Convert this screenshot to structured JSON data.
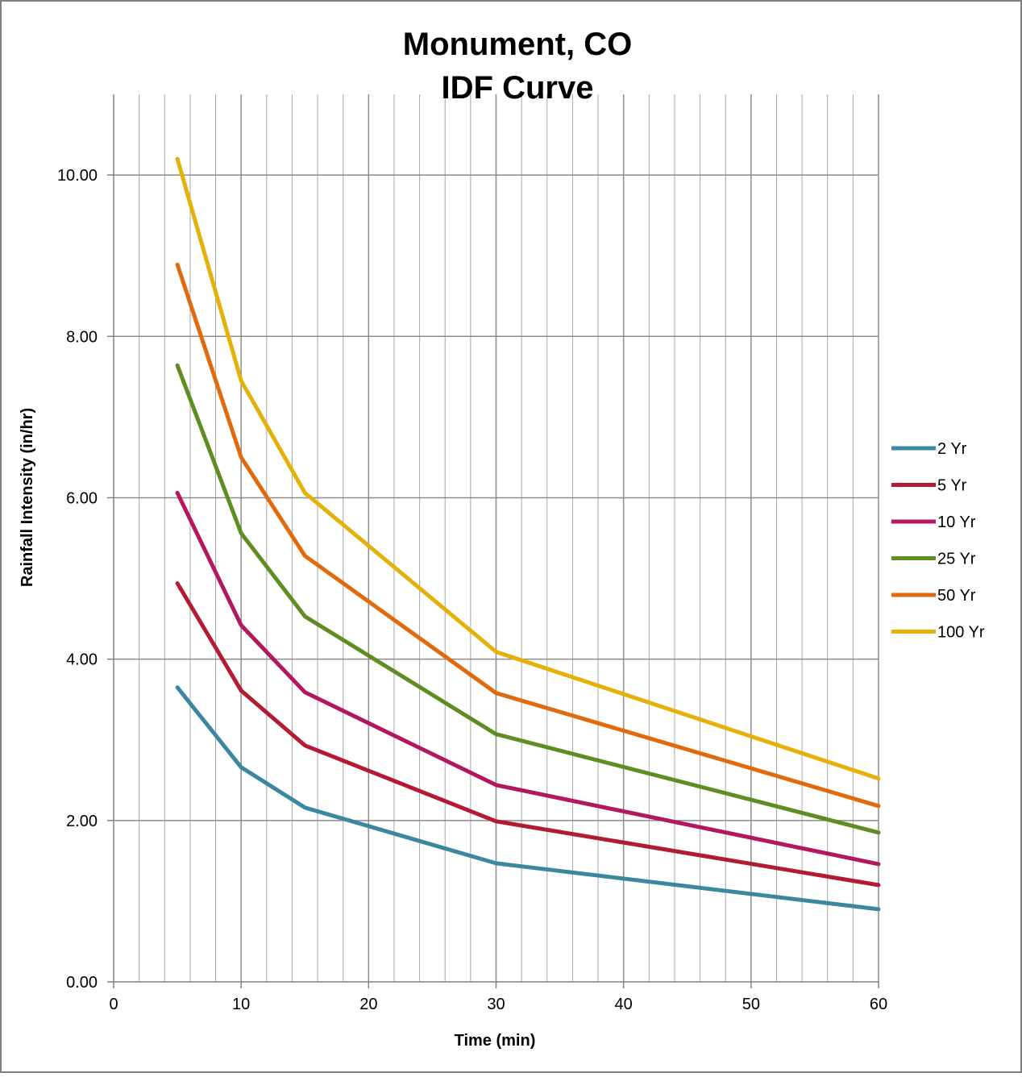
{
  "chart_data": {
    "type": "line",
    "title": "Monument, CO",
    "subtitle": "IDF Curve",
    "xlabel": "Time  (min)",
    "ylabel": "Rainfall Intensity (in/hr)",
    "xlim": [
      0,
      60
    ],
    "ylim": [
      0,
      11
    ],
    "x_ticks": [
      "0",
      "10",
      "20",
      "30",
      "40",
      "50",
      "60"
    ],
    "y_ticks": [
      "0.00",
      "2.00",
      "4.00",
      "6.00",
      "8.00",
      "10.00"
    ],
    "grid": true,
    "legend_position": "right",
    "x": [
      5,
      10,
      15,
      30,
      60
    ],
    "series": [
      {
        "name": "2 Yr",
        "color": "#3b87a1",
        "values": [
          3.65,
          2.66,
          2.16,
          1.47,
          0.9
        ]
      },
      {
        "name": "5 Yr",
        "color": "#b31b34",
        "values": [
          4.94,
          3.61,
          2.93,
          1.99,
          1.2
        ]
      },
      {
        "name": "10 Yr",
        "color": "#b3175f",
        "values": [
          6.06,
          4.42,
          3.59,
          2.44,
          1.46
        ]
      },
      {
        "name": "25 Yr",
        "color": "#5e8e22",
        "values": [
          7.64,
          5.56,
          4.53,
          3.07,
          1.85
        ]
      },
      {
        "name": "50 Yr",
        "color": "#e06b0e",
        "values": [
          8.89,
          6.5,
          5.28,
          3.58,
          2.18
        ]
      },
      {
        "name": "100 Yr",
        "color": "#e3b10a",
        "values": [
          10.2,
          7.45,
          6.06,
          4.09,
          2.52
        ]
      }
    ]
  }
}
